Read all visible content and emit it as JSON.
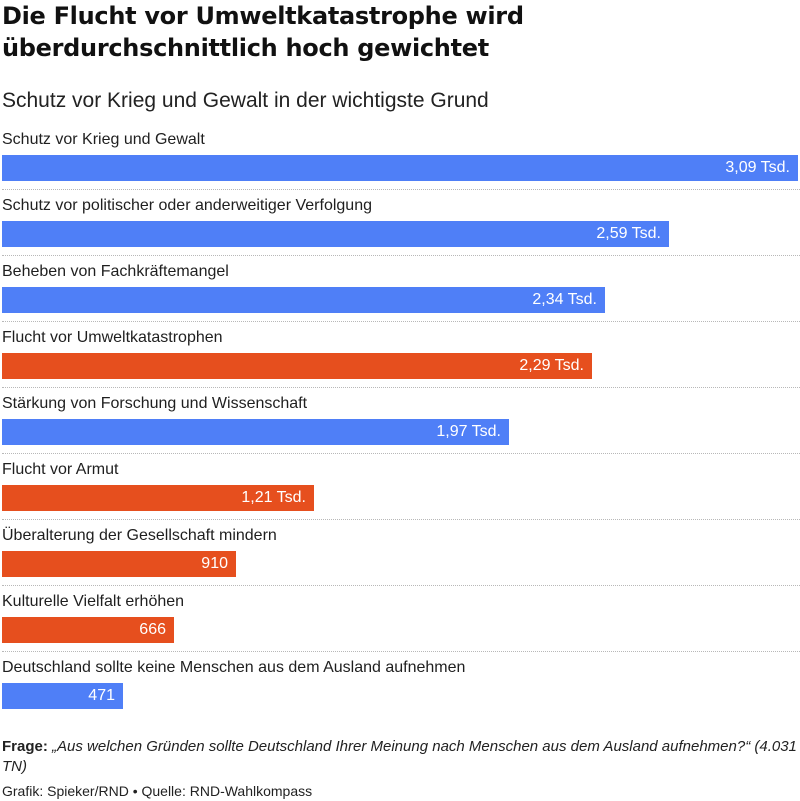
{
  "header": {
    "title": "Die Flucht vor Umweltkatastrophe wird überdurchschnittlich hoch gewichtet",
    "subtitle": "Schutz vor Krieg und Gewalt in der wichtigste Grund"
  },
  "colors": {
    "blue": "#4f7ff7",
    "orange": "#e64f1e"
  },
  "chart_data": {
    "type": "bar",
    "orientation": "horizontal",
    "categories": [
      "Schutz vor Krieg und Gewalt",
      "Schutz vor politischer oder anderweitiger Verfolgung",
      "Beheben von Fachkräftemangel",
      "Flucht vor Umweltkatastrophen",
      "Stärkung von Forschung und Wissenschaft",
      "Flucht vor Armut",
      "Überalterung der Gesellschaft mindern",
      "Kulturelle Vielfalt erhöhen",
      "Deutschland sollte keine Menschen aus dem Ausland aufnehmen"
    ],
    "values": [
      3090,
      2590,
      2340,
      2290,
      1970,
      1210,
      910,
      666,
      471
    ],
    "value_labels": [
      "3,09 Tsd.",
      "2,59 Tsd.",
      "2,34 Tsd.",
      "2,29 Tsd.",
      "1,97 Tsd.",
      "1,21 Tsd.",
      "910",
      "666",
      "471"
    ],
    "bar_colors": [
      "blue",
      "blue",
      "blue",
      "orange",
      "blue",
      "orange",
      "orange",
      "orange",
      "blue"
    ],
    "xlim": [
      0,
      3090
    ],
    "grid": false,
    "legend": "none"
  },
  "footer": {
    "question_label": "Frage:",
    "question_text": "„Aus welchen Gründen sollte Deutschland Ihrer Meinung nach Menschen aus dem Ausland aufnehmen?“ (4.031 TN)",
    "credit": "Grafik: Spieker/RND • Quelle: RND-Wahlkompass"
  }
}
